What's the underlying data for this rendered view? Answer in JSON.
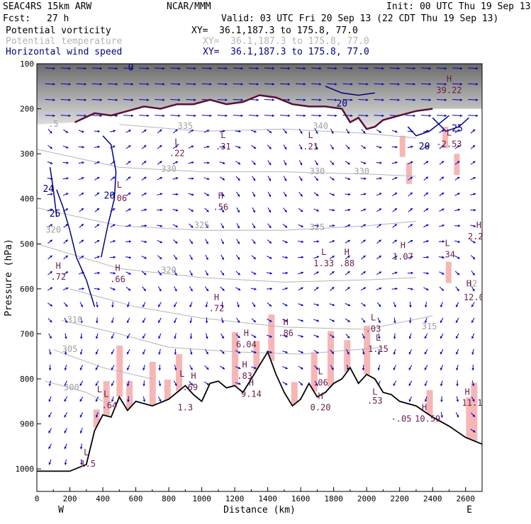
{
  "header": {
    "model": "SEAC4RS 15km ARW",
    "org": "NCAR/MMM",
    "init": "Init: 00 UTC Thu 19 Sep 13",
    "fcst_label": "Fcst:",
    "fcst_value": "27 h",
    "valid": "Valid: 03 UTC Fri 20 Sep 13 (22 CDT Thu 19 Sep 13)"
  },
  "fields": [
    {
      "name": "Potential vorticity",
      "xy": "XY=  36.1,187.3 to 175.8, 77.0",
      "color": "#000000"
    },
    {
      "name": "Potential temperature",
      "xy": "XY=  36.1,187.3 to 175.8, 77.0",
      "color": "#b4b4b4"
    },
    {
      "name": "Horizontal wind speed",
      "xy": "XY=  36.1,187.3 to 175.8, 77.0",
      "color": "#000080"
    }
  ],
  "chart_data": {
    "type": "cross-section",
    "xlabel": "Distance (km)",
    "ylabel": "Pressure (hPa)",
    "x_ticks": [
      "0",
      "200",
      "400",
      "600",
      "800",
      "1000",
      "1200",
      "1400",
      "1600",
      "1800",
      "2000",
      "2200",
      "2400",
      "2600"
    ],
    "x_tick_values": [
      0,
      200,
      400,
      600,
      800,
      1000,
      1200,
      1400,
      1600,
      1800,
      2000,
      2200,
      2400,
      2600
    ],
    "y_ticks": [
      "100",
      "200",
      "300",
      "400",
      "500",
      "600",
      "700",
      "800",
      "900",
      "1000"
    ],
    "y_tick_values": [
      100,
      200,
      300,
      400,
      500,
      600,
      700,
      800,
      900,
      1000
    ],
    "xlim": [
      0,
      2700
    ],
    "ylim": [
      1050,
      100
    ],
    "end_labels": {
      "left": "W",
      "right": "E"
    },
    "terrain": [
      [
        0,
        1005
      ],
      [
        200,
        1005
      ],
      [
        300,
        990
      ],
      [
        350,
        915
      ],
      [
        400,
        880
      ],
      [
        450,
        885
      ],
      [
        500,
        840
      ],
      [
        550,
        870
      ],
      [
        600,
        850
      ],
      [
        700,
        860
      ],
      [
        800,
        845
      ],
      [
        900,
        815
      ],
      [
        950,
        835
      ],
      [
        1000,
        850
      ],
      [
        1050,
        810
      ],
      [
        1100,
        805
      ],
      [
        1150,
        820
      ],
      [
        1200,
        815
      ],
      [
        1250,
        830
      ],
      [
        1300,
        800
      ],
      [
        1350,
        770
      ],
      [
        1400,
        740
      ],
      [
        1450,
        790
      ],
      [
        1500,
        830
      ],
      [
        1550,
        860
      ],
      [
        1600,
        845
      ],
      [
        1650,
        810
      ],
      [
        1700,
        840
      ],
      [
        1750,
        830
      ],
      [
        1800,
        810
      ],
      [
        1850,
        800
      ],
      [
        1900,
        775
      ],
      [
        1950,
        810
      ],
      [
        2000,
        790
      ],
      [
        2050,
        800
      ],
      [
        2100,
        830
      ],
      [
        2150,
        835
      ],
      [
        2200,
        850
      ],
      [
        2300,
        860
      ],
      [
        2400,
        885
      ],
      [
        2500,
        905
      ],
      [
        2600,
        930
      ],
      [
        2700,
        945
      ]
    ],
    "tropopause": [
      [
        230,
        230
      ],
      [
        350,
        210
      ],
      [
        450,
        215
      ],
      [
        550,
        205
      ],
      [
        650,
        195
      ],
      [
        750,
        200
      ],
      [
        850,
        190
      ],
      [
        950,
        190
      ],
      [
        1050,
        180
      ],
      [
        1150,
        190
      ],
      [
        1250,
        185
      ],
      [
        1350,
        170
      ],
      [
        1450,
        175
      ],
      [
        1550,
        190
      ],
      [
        1650,
        195
      ],
      [
        1750,
        195
      ],
      [
        1850,
        200
      ],
      [
        1900,
        230
      ],
      [
        1950,
        220
      ],
      [
        2000,
        245
      ],
      [
        2050,
        240
      ],
      [
        2100,
        225
      ],
      [
        2200,
        215
      ],
      [
        2300,
        205
      ],
      [
        2400,
        200
      ]
    ],
    "theta_contours": [
      {
        "label": "335",
        "points": [
          [
            500,
            235
          ],
          [
            1000,
            250
          ],
          [
            1500,
            245
          ],
          [
            2000,
            255
          ],
          [
            2300,
            265
          ]
        ]
      },
      {
        "label": "330",
        "points": [
          [
            0,
            290
          ],
          [
            500,
            330
          ],
          [
            1000,
            340
          ],
          [
            1500,
            340
          ],
          [
            2000,
            345
          ],
          [
            2300,
            350
          ]
        ]
      },
      {
        "label": "325",
        "points": [
          [
            0,
            420
          ],
          [
            500,
            460
          ],
          [
            1000,
            470
          ],
          [
            1500,
            470
          ],
          [
            2000,
            460
          ],
          [
            2300,
            450
          ]
        ]
      },
      {
        "label": "320",
        "points": [
          [
            0,
            500
          ],
          [
            500,
            555
          ],
          [
            1000,
            575
          ],
          [
            1500,
            585
          ],
          [
            2000,
            580
          ],
          [
            2300,
            575
          ]
        ]
      },
      {
        "label": "315",
        "points": [
          [
            200,
            600
          ],
          [
            600,
            640
          ],
          [
            1000,
            665
          ],
          [
            1500,
            685
          ],
          [
            2000,
            690
          ],
          [
            2400,
            660
          ]
        ]
      },
      {
        "label": "310",
        "points": [
          [
            150,
            670
          ],
          [
            500,
            700
          ],
          [
            800,
            730
          ],
          [
            1200,
            740
          ],
          [
            1600,
            745
          ],
          [
            2100,
            730
          ]
        ]
      },
      {
        "label": "305",
        "points": [
          [
            100,
            735
          ],
          [
            400,
            775
          ],
          [
            700,
            800
          ]
        ]
      },
      {
        "label": "300",
        "points": [
          [
            50,
            805
          ],
          [
            300,
            830
          ],
          [
            400,
            850
          ]
        ]
      }
    ],
    "wind_contours": [
      {
        "label": "20",
        "points": [
          [
            400,
            260
          ],
          [
            450,
            280
          ],
          [
            480,
            340
          ],
          [
            470,
            400
          ],
          [
            430,
            460
          ],
          [
            390,
            530
          ]
        ]
      },
      {
        "label": "25",
        "points": [
          [
            120,
            380
          ],
          [
            160,
            420
          ],
          [
            200,
            470
          ],
          [
            240,
            530
          ],
          [
            300,
            580
          ],
          [
            350,
            640
          ]
        ]
      },
      {
        "label": "24",
        "points": [
          [
            80,
            330
          ],
          [
            100,
            380
          ],
          [
            120,
            440
          ]
        ]
      },
      {
        "label": "20",
        "points": [
          [
            2250,
            240
          ],
          [
            2300,
            260
          ],
          [
            2380,
            250
          ],
          [
            2450,
            230
          ],
          [
            2500,
            215
          ]
        ]
      },
      {
        "label": "25",
        "points": [
          [
            2400,
            220
          ],
          [
            2480,
            250
          ],
          [
            2560,
            240
          ],
          [
            2620,
            220
          ]
        ]
      },
      {
        "label": "20",
        "points": [
          [
            1750,
            150
          ],
          [
            1850,
            165
          ],
          [
            1950,
            170
          ],
          [
            2050,
            165
          ]
        ]
      }
    ],
    "annotations": [
      {
        "text": "L",
        "x": 500,
        "p": 375
      },
      {
        "text": ".06",
        "x": 500,
        "p": 405
      },
      {
        "text": "L",
        "x": 850,
        "p": 280
      },
      {
        "text": ".22",
        "x": 850,
        "p": 305
      },
      {
        "text": "L",
        "x": 1130,
        "p": 265
      },
      {
        "text": ".31",
        "x": 1130,
        "p": 290
      },
      {
        "text": "L",
        "x": 1660,
        "p": 265
      },
      {
        "text": ".21",
        "x": 1660,
        "p": 290
      },
      {
        "text": "H",
        "x": 1115,
        "p": 400
      },
      {
        "text": ".56",
        "x": 1115,
        "p": 425
      },
      {
        "text": "H",
        "x": 130,
        "p": 555
      },
      {
        "text": ".72",
        "x": 130,
        "p": 580
      },
      {
        "text": "H",
        "x": 490,
        "p": 560
      },
      {
        "text": ".66",
        "x": 490,
        "p": 585
      },
      {
        "text": "H",
        "x": 1090,
        "p": 625
      },
      {
        "text": ".72",
        "x": 1090,
        "p": 650
      },
      {
        "text": "L",
        "x": 1740,
        "p": 525
      },
      {
        "text": "1.33",
        "x": 1740,
        "p": 550
      },
      {
        "text": "H",
        "x": 1880,
        "p": 525
      },
      {
        "text": ".88",
        "x": 1880,
        "p": 550
      },
      {
        "text": "H",
        "x": 2220,
        "p": 510
      },
      {
        "text": "1.07",
        "x": 2220,
        "p": 535
      },
      {
        "text": "L",
        "x": 2490,
        "p": 505
      },
      {
        "text": ".34",
        "x": 2490,
        "p": 530
      },
      {
        "text": "H",
        "x": 1270,
        "p": 705
      },
      {
        "text": "6.04",
        "x": 1270,
        "p": 730
      },
      {
        "text": "H",
        "x": 1510,
        "p": 680
      },
      {
        "text": ".86",
        "x": 1510,
        "p": 705
      },
      {
        "text": "H",
        "x": 1260,
        "p": 775
      },
      {
        "text": ".83",
        "x": 1260,
        "p": 800
      },
      {
        "text": "L",
        "x": 2040,
        "p": 670
      },
      {
        "text": ".03",
        "x": 2040,
        "p": 695
      },
      {
        "text": "L",
        "x": 2070,
        "p": 715
      },
      {
        "text": "1.15",
        "x": 2070,
        "p": 740
      },
      {
        "text": "L",
        "x": 1720,
        "p": 790
      },
      {
        "text": ".06",
        "x": 1720,
        "p": 815
      },
      {
        "text": "L",
        "x": 880,
        "p": 795
      },
      {
        "text": "H",
        "x": 950,
        "p": 800
      },
      {
        "text": ".69",
        "x": 930,
        "p": 825
      },
      {
        "text": "H",
        "x": 1300,
        "p": 815
      },
      {
        "text": "9.14",
        "x": 1300,
        "p": 840
      },
      {
        "text": "L",
        "x": 380,
        "p": 830
      },
      {
        "text": "L",
        "x": 420,
        "p": 840
      },
      {
        "text": ".64",
        "x": 440,
        "p": 865
      },
      {
        "text": "1.3",
        "x": 900,
        "p": 870
      },
      {
        "text": "H",
        "x": 1720,
        "p": 845
      },
      {
        "text": "0.20",
        "x": 1720,
        "p": 870
      },
      {
        "text": "L",
        "x": 2050,
        "p": 835
      },
      {
        "text": ".53",
        "x": 2050,
        "p": 855
      },
      {
        "text": "H",
        "x": 2350,
        "p": 870
      },
      {
        "text": "10.59",
        "x": 2370,
        "p": 895
      },
      {
        "text": "-.05",
        "x": 2210,
        "p": 895
      },
      {
        "text": "H",
        "x": 2610,
        "p": 835
      },
      {
        "text": "11.1",
        "x": 2640,
        "p": 860
      },
      {
        "text": "H",
        "x": 2620,
        "p": 595
      },
      {
        "text": "12.0",
        "x": 2650,
        "p": 625
      },
      {
        "text": "H",
        "x": 2680,
        "p": 465
      },
      {
        "text": "2.2",
        "x": 2660,
        "p": 490
      },
      {
        "text": "L",
        "x": 2500,
        "p": 260
      },
      {
        "text": "-2.53",
        "x": 2500,
        "p": 285
      },
      {
        "text": "H",
        "x": 2500,
        "p": 140
      },
      {
        "text": "39.22",
        "x": 2500,
        "p": 165
      },
      {
        "text": "L",
        "x": 300,
        "p": 970
      },
      {
        "text": "1.5",
        "x": 310,
        "p": 995
      }
    ],
    "theta_labels": [
      {
        "text": "335",
        "x": 900,
        "p": 245
      },
      {
        "text": "340",
        "x": 1720,
        "p": 245
      },
      {
        "text": "330",
        "x": 800,
        "p": 340
      },
      {
        "text": "330",
        "x": 1700,
        "p": 345
      },
      {
        "text": "330",
        "x": 1970,
        "p": 345
      },
      {
        "text": "325",
        "x": 1000,
        "p": 465
      },
      {
        "text": "325",
        "x": 1700,
        "p": 470
      },
      {
        "text": "320",
        "x": 800,
        "p": 565
      },
      {
        "text": "320",
        "x": 100,
        "p": 475
      },
      {
        "text": "315",
        "x": 2380,
        "p": 690
      },
      {
        "text": "32",
        "x": 2640,
        "p": 595
      },
      {
        "text": "310",
        "x": 230,
        "p": 675
      },
      {
        "text": "305",
        "x": 200,
        "p": 740
      },
      {
        "text": "300",
        "x": 210,
        "p": 825
      },
      {
        "text": ".5",
        "x": 100,
        "p": 240
      }
    ],
    "wind_labels": [
      {
        "text": "20",
        "x": 440,
        "p": 400
      },
      {
        "text": "25",
        "x": 110,
        "p": 440
      },
      {
        "text": "24",
        "x": 70,
        "p": 385
      },
      {
        "text": "20",
        "x": 2350,
        "p": 290
      },
      {
        "text": "25",
        "x": 2550,
        "p": 250
      },
      {
        "text": "20",
        "x": 1850,
        "p": 195
      },
      {
        "text": "0",
        "x": 570,
        "p": 115
      }
    ]
  }
}
